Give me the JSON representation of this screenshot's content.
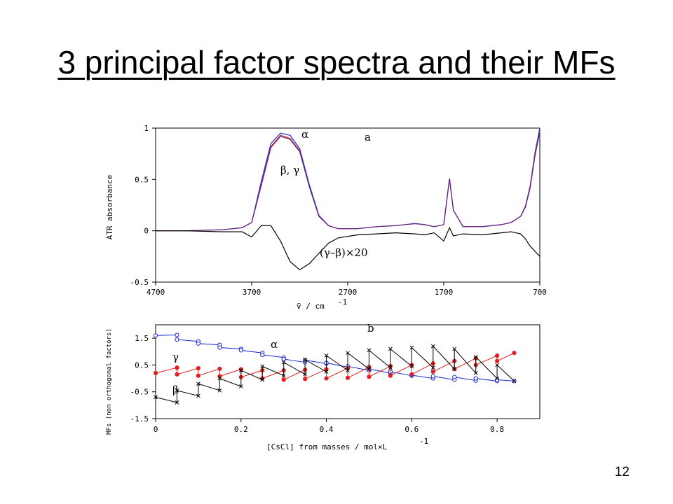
{
  "slide": {
    "title": "3 principal factor spectra and their MFs",
    "page_number": "12"
  },
  "chart_data": [
    {
      "type": "line",
      "panel_label": "a",
      "xlabel": "ṽ / cm",
      "xlabel_exponent": "-1",
      "ylabel": "ATR absorbance",
      "xlim": [
        4700,
        700
      ],
      "ylim": [
        -0.5,
        1
      ],
      "x_ticks": [
        "4700",
        "3700",
        "2700",
        "1700",
        "700"
      ],
      "y_ticks": [
        "1",
        "0.5",
        "0",
        "-0.5"
      ],
      "annotations": [
        "α",
        "β, γ",
        "(γ–β)×20"
      ],
      "x": [
        4700,
        4400,
        4000,
        3800,
        3700,
        3600,
        3500,
        3400,
        3300,
        3200,
        3100,
        3000,
        2900,
        2800,
        2600,
        2400,
        2200,
        2000,
        1900,
        1800,
        1700,
        1640,
        1600,
        1500,
        1300,
        1100,
        1000,
        900,
        850,
        800,
        750,
        700
      ],
      "series": [
        {
          "name": "α",
          "color": "#1a2ad0",
          "values": [
            0.0,
            0.0,
            0.01,
            0.03,
            0.08,
            0.48,
            0.85,
            0.95,
            0.93,
            0.8,
            0.45,
            0.15,
            0.05,
            0.02,
            0.02,
            0.04,
            0.05,
            0.07,
            0.06,
            0.04,
            0.06,
            0.51,
            0.2,
            0.04,
            0.04,
            0.06,
            0.08,
            0.14,
            0.24,
            0.44,
            0.76,
            1.0
          ]
        },
        {
          "name": "β",
          "color": "#e02020",
          "values": [
            0.0,
            0.0,
            0.01,
            0.03,
            0.08,
            0.45,
            0.82,
            0.93,
            0.9,
            0.78,
            0.43,
            0.14,
            0.05,
            0.02,
            0.02,
            0.04,
            0.05,
            0.07,
            0.06,
            0.04,
            0.06,
            0.51,
            0.2,
            0.04,
            0.04,
            0.06,
            0.08,
            0.14,
            0.23,
            0.43,
            0.74,
            0.97
          ]
        },
        {
          "name": "γ",
          "color": "#5a2a8a",
          "values": [
            0.0,
            0.0,
            0.01,
            0.03,
            0.08,
            0.44,
            0.81,
            0.92,
            0.89,
            0.77,
            0.43,
            0.14,
            0.05,
            0.02,
            0.02,
            0.04,
            0.05,
            0.07,
            0.06,
            0.04,
            0.06,
            0.51,
            0.2,
            0.04,
            0.04,
            0.06,
            0.08,
            0.14,
            0.23,
            0.42,
            0.73,
            0.96
          ]
        },
        {
          "name": "(γ–β)×20",
          "color": "#000000",
          "values": [
            0.0,
            0.0,
            -0.01,
            -0.01,
            -0.06,
            0.05,
            0.05,
            -0.1,
            -0.3,
            -0.38,
            -0.32,
            -0.22,
            -0.12,
            -0.07,
            -0.04,
            -0.03,
            -0.02,
            -0.03,
            -0.04,
            -0.02,
            -0.1,
            0.03,
            -0.05,
            -0.03,
            -0.04,
            -0.02,
            -0.01,
            -0.03,
            -0.08,
            -0.15,
            -0.2,
            -0.25
          ]
        }
      ]
    },
    {
      "type": "line",
      "panel_label": "b",
      "xlabel": "[CsCl] from masses / mol×L",
      "xlabel_exponent": "-1",
      "ylabel": "MFs (non orthogonal factors)",
      "xlim": [
        0,
        0.9
      ],
      "ylim": [
        -1.5,
        2
      ],
      "x_ticks": [
        "0",
        "0.2",
        "0.4",
        "0.6",
        "0.8"
      ],
      "y_ticks": [
        "1.5",
        "0.5",
        "-0.5",
        "-1.5"
      ],
      "annotations": [
        "α",
        "γ",
        "β"
      ],
      "series": [
        {
          "name": "α",
          "color": "#1a2ad0",
          "x": [
            0,
            0.05,
            0.05,
            0.1,
            0.1,
            0.15,
            0.15,
            0.2,
            0.2,
            0.25,
            0.25,
            0.3,
            0.3,
            0.35,
            0.35,
            0.4,
            0.4,
            0.45,
            0.45,
            0.5,
            0.5,
            0.55,
            0.55,
            0.6,
            0.6,
            0.65,
            0.65,
            0.7,
            0.7,
            0.75,
            0.75,
            0.8,
            0.8,
            0.84
          ],
          "y": [
            1.6,
            1.62,
            1.45,
            1.38,
            1.3,
            1.25,
            1.15,
            1.1,
            1.05,
            0.95,
            0.88,
            0.78,
            0.72,
            0.6,
            0.68,
            0.55,
            0.58,
            0.42,
            0.45,
            0.3,
            0.35,
            0.2,
            0.25,
            0.1,
            0.12,
            0.0,
            0.08,
            -0.05,
            0.05,
            -0.08,
            0.0,
            -0.1,
            -0.05,
            -0.1
          ]
        },
        {
          "name": "γ",
          "color": "#e02020",
          "x": [
            0,
            0.05,
            0.05,
            0.1,
            0.1,
            0.15,
            0.15,
            0.2,
            0.2,
            0.25,
            0.25,
            0.3,
            0.3,
            0.35,
            0.35,
            0.4,
            0.4,
            0.45,
            0.45,
            0.5,
            0.5,
            0.55,
            0.55,
            0.6,
            0.6,
            0.65,
            0.65,
            0.7,
            0.7,
            0.75,
            0.75,
            0.8,
            0.8,
            0.84
          ],
          "y": [
            0.2,
            0.4,
            0.15,
            0.38,
            0.1,
            0.36,
            0.08,
            0.34,
            0.05,
            0.3,
            0.0,
            0.3,
            -0.05,
            0.32,
            -0.02,
            0.34,
            0.0,
            0.38,
            0.02,
            0.42,
            0.06,
            0.46,
            0.1,
            0.5,
            0.15,
            0.56,
            0.25,
            0.65,
            0.35,
            0.75,
            0.5,
            0.85,
            0.65,
            0.95
          ]
        },
        {
          "name": "β",
          "color": "#000000",
          "x": [
            0,
            0.05,
            0.05,
            0.1,
            0.1,
            0.15,
            0.15,
            0.2,
            0.2,
            0.25,
            0.25,
            0.3,
            0.3,
            0.35,
            0.35,
            0.4,
            0.4,
            0.45,
            0.45,
            0.5,
            0.5,
            0.55,
            0.55,
            0.6,
            0.6,
            0.65,
            0.65,
            0.7,
            0.7,
            0.75,
            0.75,
            0.8,
            0.8,
            0.84
          ],
          "y": [
            -0.7,
            -0.9,
            -0.45,
            -0.65,
            -0.2,
            -0.45,
            0.0,
            -0.3,
            0.3,
            -0.05,
            0.45,
            0.1,
            0.6,
            0.15,
            0.7,
            0.25,
            0.85,
            0.3,
            0.95,
            0.35,
            1.05,
            0.4,
            1.1,
            0.45,
            1.15,
            0.4,
            1.2,
            0.35,
            1.1,
            0.2,
            0.8,
            0.0,
            0.5,
            -0.1
          ]
        }
      ]
    }
  ]
}
